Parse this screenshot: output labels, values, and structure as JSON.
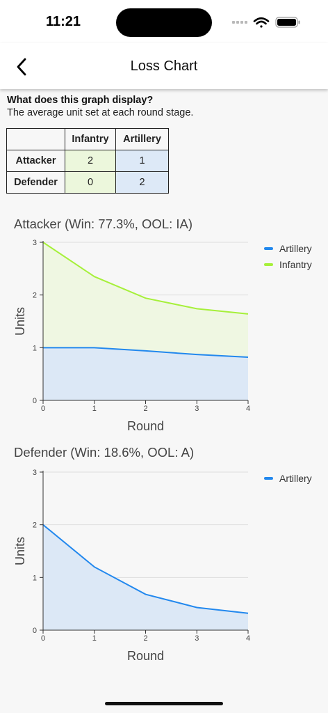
{
  "status_bar": {
    "time": "11:21"
  },
  "header": {
    "title": "Loss Chart"
  },
  "info": {
    "question": "What does this graph display?",
    "description": "The average unit set at each round stage."
  },
  "unit_table": {
    "columns": [
      "Infantry",
      "Artillery"
    ],
    "rows": [
      {
        "label": "Attacker",
        "values": [
          "2",
          "1"
        ]
      },
      {
        "label": "Defender",
        "values": [
          "0",
          "2"
        ]
      }
    ],
    "cell_colors": [
      "#ecf7dc",
      "#dde9f7"
    ]
  },
  "colors": {
    "artillery": "#2288ee",
    "infantry": "#a6f03a",
    "artillery_fill": "#dce8f6",
    "infantry_fill": "#eff7e2"
  },
  "chart_data": [
    {
      "type": "area",
      "title": "Attacker (Win: 77.3%, OOL: IA)",
      "xlabel": "Round",
      "ylabel": "Units",
      "x": [
        0,
        1,
        2,
        3,
        4
      ],
      "xticks": [
        "0",
        "1",
        "2",
        "3",
        "4"
      ],
      "yticks": [
        "0",
        "1",
        "2",
        "3"
      ],
      "ylim": [
        0,
        3
      ],
      "stacked": true,
      "grid": true,
      "legend": "top-right",
      "series": [
        {
          "name": "Artillery",
          "values": [
            1.0,
            1.0,
            0.94,
            0.87,
            0.82
          ],
          "color": "#2288ee"
        },
        {
          "name": "Infantry",
          "values": [
            2.0,
            1.35,
            1.0,
            0.87,
            0.82
          ],
          "color": "#a6f03a"
        }
      ]
    },
    {
      "type": "area",
      "title": "Defender (Win: 18.6%, OOL: A)",
      "xlabel": "Round",
      "ylabel": "Units",
      "x": [
        0,
        1,
        2,
        3,
        4
      ],
      "xticks": [
        "0",
        "1",
        "2",
        "3",
        "4"
      ],
      "yticks": [
        "0",
        "1",
        "2",
        "3"
      ],
      "ylim": [
        0,
        3
      ],
      "stacked": true,
      "grid": true,
      "legend": "top-right",
      "series": [
        {
          "name": "Artillery",
          "values": [
            2.0,
            1.2,
            0.68,
            0.43,
            0.32
          ],
          "color": "#2288ee"
        }
      ]
    }
  ]
}
